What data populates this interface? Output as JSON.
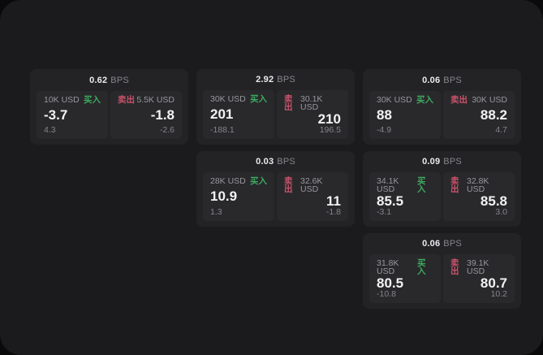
{
  "theme": {
    "accent_green": "#3ea95e",
    "accent_red": "#c9536a",
    "panel_bg": "#1b1b1d",
    "card_bg": "#232326",
    "pane_bg": "#29292c"
  },
  "labels": {
    "bps_suffix": "BPS",
    "buy": "买入",
    "sell": "卖出"
  },
  "cards": [
    {
      "bps": "0.62",
      "buy": {
        "size": "10K USD",
        "price": "-3.7",
        "delta": "4.3"
      },
      "sell": {
        "size": "5.5K USD",
        "price": "-1.8",
        "delta": "-2.6"
      }
    },
    {
      "bps": "2.92",
      "buy": {
        "size": "30K USD",
        "price": "201",
        "delta": "-188.1"
      },
      "sell": {
        "size": "30.1K USD",
        "price": "210",
        "delta": "196.5"
      }
    },
    {
      "bps": "0.06",
      "buy": {
        "size": "30K USD",
        "price": "88",
        "delta": "-4.9"
      },
      "sell": {
        "size": "30K USD",
        "price": "88.2",
        "delta": "4.7"
      }
    },
    {
      "bps": "0.03",
      "buy": {
        "size": "28K USD",
        "price": "10.9",
        "delta": "1.3"
      },
      "sell": {
        "size": "32.6K USD",
        "price": "11",
        "delta": "-1.8"
      }
    },
    {
      "bps": "0.09",
      "buy": {
        "size": "34.1K USD",
        "price": "85.5",
        "delta": "-3.1"
      },
      "sell": {
        "size": "32.8K USD",
        "price": "85.8",
        "delta": "3.0"
      }
    },
    {
      "bps": "0.06",
      "buy": {
        "size": "31.8K USD",
        "price": "80.5",
        "delta": "-10.8"
      },
      "sell": {
        "size": "39.1K USD",
        "price": "80.7",
        "delta": "10.2"
      }
    }
  ]
}
